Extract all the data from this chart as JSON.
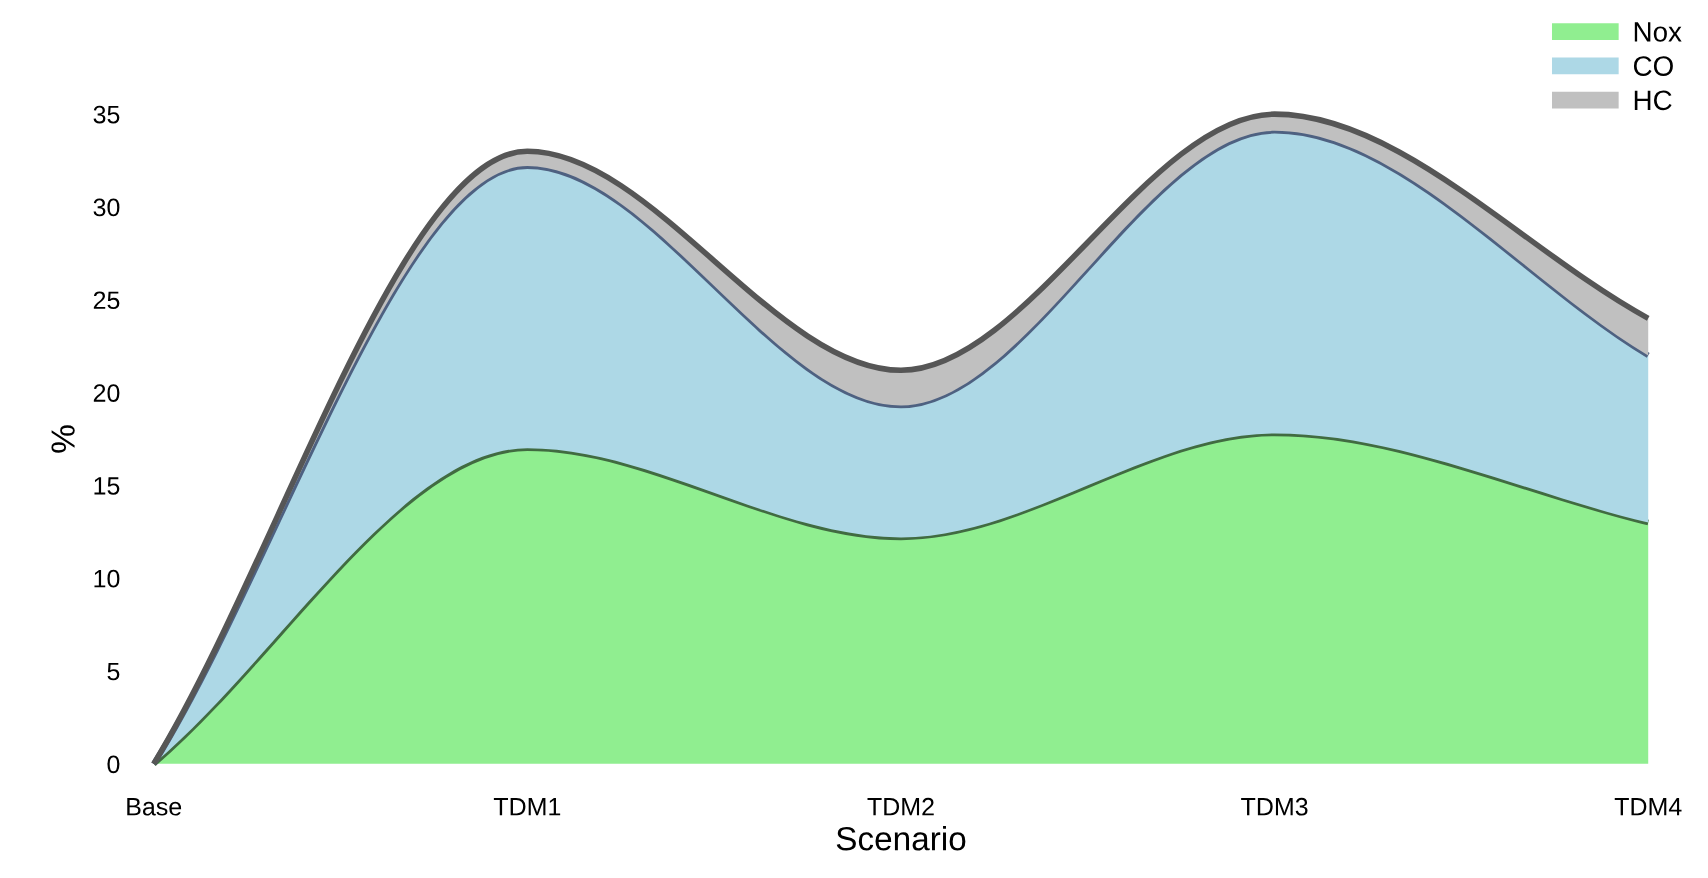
{
  "chart_data": {
    "type": "area",
    "stacked": true,
    "xlabel": "Scenario",
    "ylabel": "%",
    "categories": [
      "Base",
      "TDM1",
      "TDM2",
      "TDM3",
      "TDM4"
    ],
    "series": [
      {
        "name": "Nox",
        "color": "#90ee90",
        "values": [
          0,
          17,
          12.2,
          17.8,
          13
        ]
      },
      {
        "name": "CO",
        "color": "#add8e6",
        "values": [
          0,
          15.2,
          7.1,
          16.3,
          9
        ]
      },
      {
        "name": "HC",
        "color": "#c0c0c0",
        "values": [
          0,
          0.8,
          1.9,
          0.9,
          2.0
        ]
      }
    ],
    "ylim": [
      0,
      35
    ],
    "yticks": [
      0,
      5,
      10,
      15,
      20,
      25,
      30,
      35
    ],
    "grid": false,
    "legend": "top right"
  }
}
